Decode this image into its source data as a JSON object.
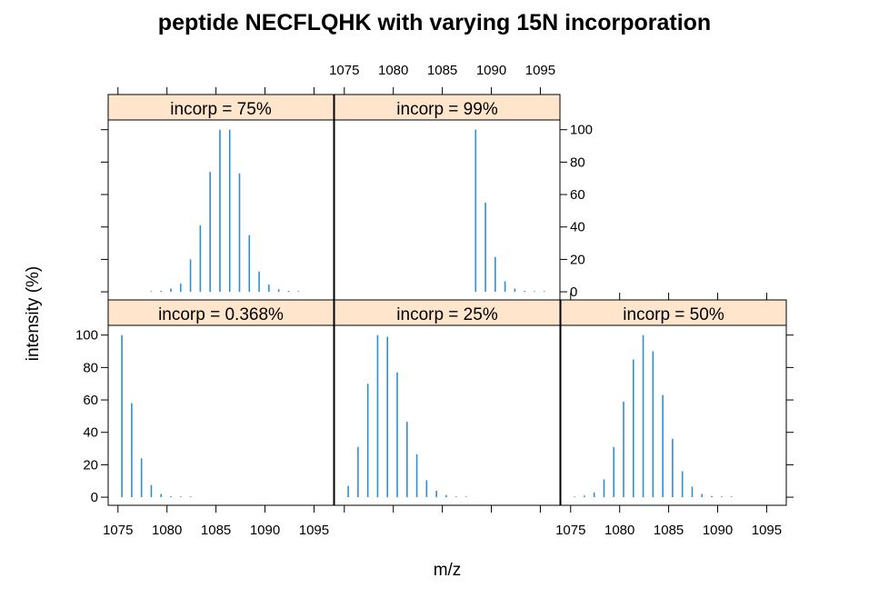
{
  "chart_data": {
    "type": "bar",
    "title": "peptide NECFLQHK with varying 15N incorporation",
    "xlabel": "m/z",
    "ylabel": "intensity (%)",
    "xlim": [
      1074,
      1097
    ],
    "ylim": [
      -5,
      106
    ],
    "x_ticks": [
      1075,
      1080,
      1085,
      1090,
      1095
    ],
    "y_ticks": [
      0,
      20,
      40,
      60,
      80,
      100
    ],
    "bar_color": "#2b8fd6",
    "strip_color": "#ffe5cc",
    "grid": false,
    "layout": "lattice 3 columns x 2 rows",
    "panels": [
      {
        "strip": "incorp = 0.368%",
        "x": [
          1075.4,
          1076.4,
          1077.4,
          1078.4,
          1079.4,
          1080.4,
          1081.4,
          1082.4
        ],
        "values": [
          100,
          58,
          24,
          7.5,
          2,
          0.6,
          0.15,
          0.05
        ]
      },
      {
        "strip": "incorp = 25%",
        "x": [
          1075.4,
          1076.4,
          1077.4,
          1078.4,
          1079.4,
          1080.4,
          1081.4,
          1082.4,
          1083.4,
          1084.4,
          1085.4,
          1086.4,
          1087.4
        ],
        "values": [
          7,
          31,
          70,
          100,
          99,
          77,
          46.5,
          26.5,
          10.5,
          4,
          1.3,
          0.4,
          0.1
        ]
      },
      {
        "strip": "incorp = 50%",
        "x": [
          1075.4,
          1076.4,
          1077.4,
          1078.4,
          1079.4,
          1080.4,
          1081.4,
          1082.4,
          1083.4,
          1084.4,
          1085.4,
          1086.4,
          1087.4,
          1088.4,
          1089.4,
          1090.4,
          1091.4
        ],
        "values": [
          0.3,
          1,
          3,
          11,
          31,
          59,
          85,
          100,
          90,
          63,
          36,
          16,
          6.5,
          2,
          0.8,
          0.3,
          0.1
        ]
      },
      {
        "strip": "incorp = 75%",
        "x": [
          1078.4,
          1079.4,
          1080.4,
          1081.4,
          1082.4,
          1083.4,
          1084.4,
          1085.4,
          1086.4,
          1087.4,
          1088.4,
          1089.4,
          1090.4,
          1091.4,
          1092.4,
          1093.4
        ],
        "values": [
          0.2,
          0.6,
          2,
          5,
          20,
          41,
          74,
          100,
          100,
          73,
          35,
          12.5,
          4.5,
          1.6,
          0.6,
          0.2
        ]
      },
      {
        "strip": "incorp = 99%",
        "x": [
          1088.4,
          1089.4,
          1090.4,
          1091.4,
          1092.4,
          1093.4,
          1094.4,
          1095.4
        ],
        "values": [
          100,
          55,
          21.5,
          6.5,
          2,
          0.6,
          0.2,
          0.1
        ]
      }
    ]
  }
}
